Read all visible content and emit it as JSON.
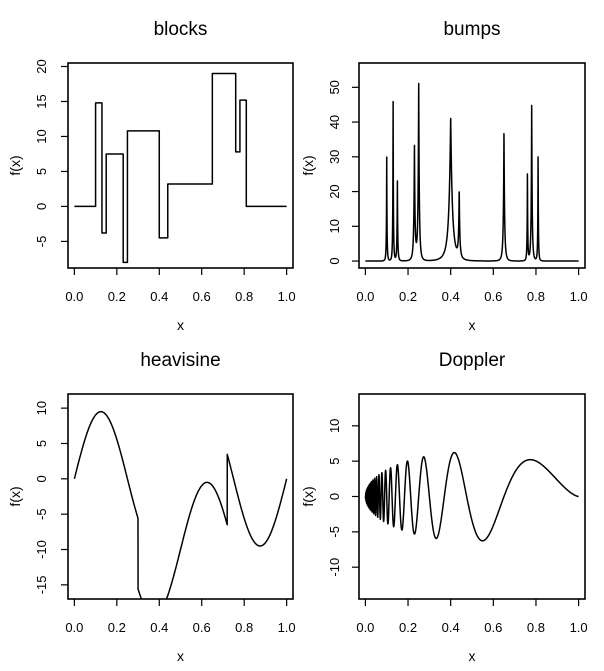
{
  "chart_data": [
    {
      "type": "line",
      "title": "blocks",
      "xlabel": "x",
      "ylabel": "f(x)",
      "xlim": [
        -0.03,
        1.03
      ],
      "ylim": [
        -8.8,
        20.5
      ],
      "xticks": [
        0.0,
        0.2,
        0.4,
        0.6,
        0.8,
        1.0
      ],
      "xtick_labels": [
        "0.0",
        "0.2",
        "0.4",
        "0.6",
        "0.8",
        "1.0"
      ],
      "yticks": [
        -5,
        0,
        5,
        10,
        15,
        20
      ],
      "ytick_labels": [
        "-5",
        "0",
        "5",
        "10",
        "15",
        "20"
      ],
      "grid": false,
      "series": [
        {
          "x": [
            0.0,
            0.1,
            0.1,
            0.13,
            0.13,
            0.15,
            0.15,
            0.23,
            0.23,
            0.25,
            0.25,
            0.4,
            0.4,
            0.44,
            0.44,
            0.65,
            0.65,
            0.76,
            0.76,
            0.78,
            0.78,
            0.81,
            0.81,
            1.0
          ],
          "y": [
            0,
            0,
            14.8,
            14.8,
            -3.8,
            -3.8,
            7.5,
            7.5,
            -8,
            -8,
            10.8,
            10.8,
            -4.5,
            -4.5,
            3.2,
            3.2,
            19,
            19,
            7.8,
            7.8,
            15.2,
            15.2,
            0,
            0
          ]
        }
      ]
    },
    {
      "type": "line",
      "title": "bumps",
      "xlabel": "x",
      "ylabel": "f(x)",
      "xlim": [
        -0.03,
        1.03
      ],
      "ylim": [
        -2,
        57
      ],
      "xticks": [
        0.0,
        0.2,
        0.4,
        0.6,
        0.8,
        1.0
      ],
      "xtick_labels": [
        "0.0",
        "0.2",
        "0.4",
        "0.6",
        "0.8",
        "1.0"
      ],
      "yticks": [
        0,
        10,
        20,
        30,
        40,
        50
      ],
      "ytick_labels": [
        "0",
        "10",
        "20",
        "30",
        "40",
        "50"
      ],
      "grid": false,
      "series": [
        {
          "peaks": [
            {
              "x": 0.1,
              "height": 31,
              "width": 0.005
            },
            {
              "x": 0.13,
              "height": 48,
              "width": 0.005
            },
            {
              "x": 0.15,
              "height": 24,
              "width": 0.006
            },
            {
              "x": 0.23,
              "height": 34,
              "width": 0.01
            },
            {
              "x": 0.25,
              "height": 53,
              "width": 0.01
            },
            {
              "x": 0.4,
              "height": 42,
              "width": 0.03
            },
            {
              "x": 0.44,
              "height": 20,
              "width": 0.01
            },
            {
              "x": 0.65,
              "height": 39,
              "width": 0.01
            },
            {
              "x": 0.76,
              "height": 27,
              "width": 0.005
            },
            {
              "x": 0.78,
              "height": 47,
              "width": 0.008
            },
            {
              "x": 0.81,
              "height": 32,
              "width": 0.005
            }
          ]
        }
      ]
    },
    {
      "type": "line",
      "title": "heavisine",
      "xlabel": "x",
      "ylabel": "f(x)",
      "xlim": [
        -0.03,
        1.03
      ],
      "ylim": [
        -17,
        12
      ],
      "xticks": [
        0.0,
        0.2,
        0.4,
        0.6,
        0.8,
        1.0
      ],
      "xtick_labels": [
        "0.0",
        "0.2",
        "0.4",
        "0.6",
        "0.8",
        "1.0"
      ],
      "yticks": [
        -15,
        -10,
        -5,
        0,
        5,
        10
      ],
      "ytick_labels": [
        "-15",
        "-10",
        "-5",
        "0",
        "5",
        "10"
      ],
      "grid": false,
      "series": [
        {
          "amplitude": 9.5,
          "cycles": 2,
          "jumps": [
            {
              "x": 0.3,
              "size": -5
            },
            {
              "x": 0.72,
              "size": 5
            }
          ]
        }
      ]
    },
    {
      "type": "line",
      "title": "Doppler",
      "xlabel": "x",
      "ylabel": "f(x)",
      "xlim": [
        -0.03,
        1.03
      ],
      "ylim": [
        -14.5,
        14.5
      ],
      "xticks": [
        0.0,
        0.2,
        0.4,
        0.6,
        0.8,
        1.0
      ],
      "xtick_labels": [
        "0.0",
        "0.2",
        "0.4",
        "0.6",
        "0.8",
        "1.0"
      ],
      "yticks": [
        -10,
        -5,
        0,
        5,
        10
      ],
      "ytick_labels": [
        "-10",
        "-5",
        "0",
        "5",
        "10"
      ],
      "grid": false,
      "series": [
        {
          "amplitude": 12.6,
          "epsilon": 0.05
        }
      ]
    }
  ]
}
